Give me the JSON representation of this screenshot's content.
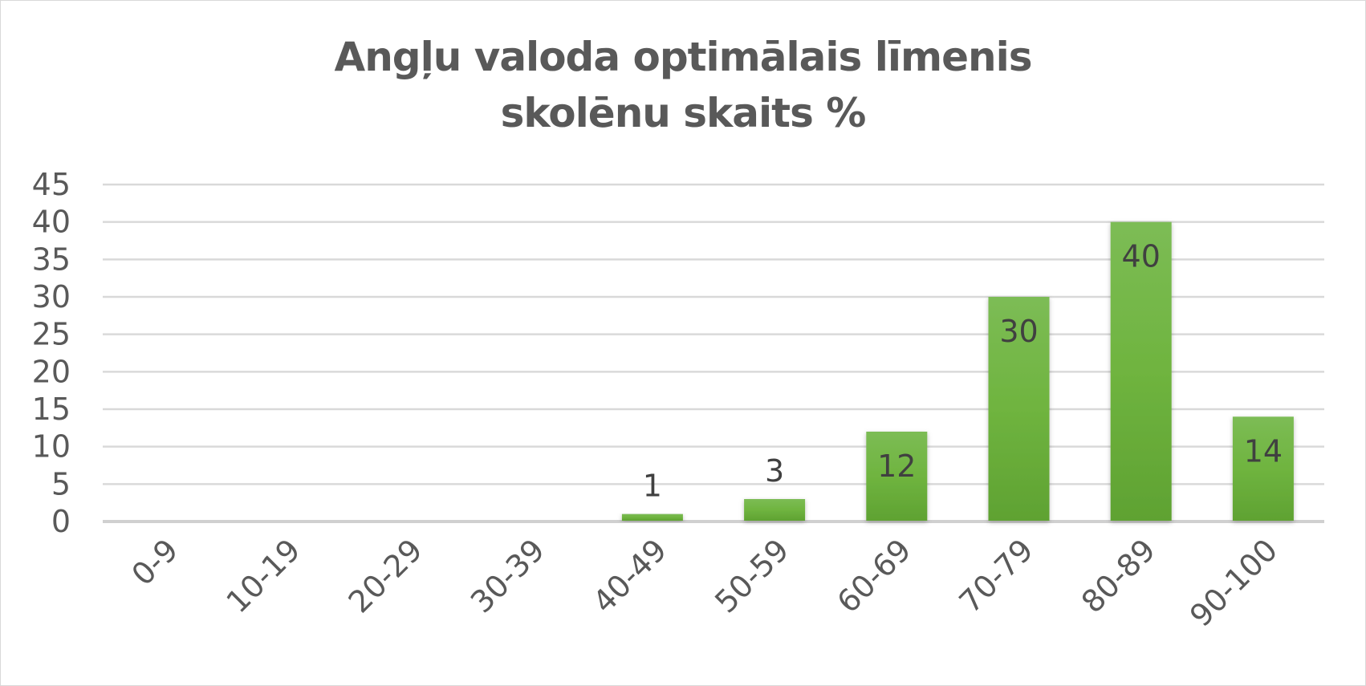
{
  "chart_data": {
    "type": "bar",
    "title_lines": [
      "Angļu valoda optimālais līmenis",
      "skolēnu skaits %"
    ],
    "categories": [
      "0-9",
      "10-19",
      "20-29",
      "30-39",
      "40-49",
      "50-59",
      "60-69",
      "70-79",
      "80-89",
      "90-100"
    ],
    "values": [
      0,
      0,
      0,
      0,
      1,
      3,
      12,
      30,
      40,
      14
    ],
    "data_labels": [
      "",
      "",
      "",
      "",
      "1",
      "3",
      "12",
      "30",
      "40",
      "14"
    ],
    "ylim": [
      0,
      45
    ],
    "yticks": [
      0,
      5,
      10,
      15,
      20,
      25,
      30,
      35,
      40,
      45
    ],
    "grid": true,
    "legend": "none",
    "bar_color": "#6aaf3d",
    "gridline_color": "#d9d9d9"
  }
}
